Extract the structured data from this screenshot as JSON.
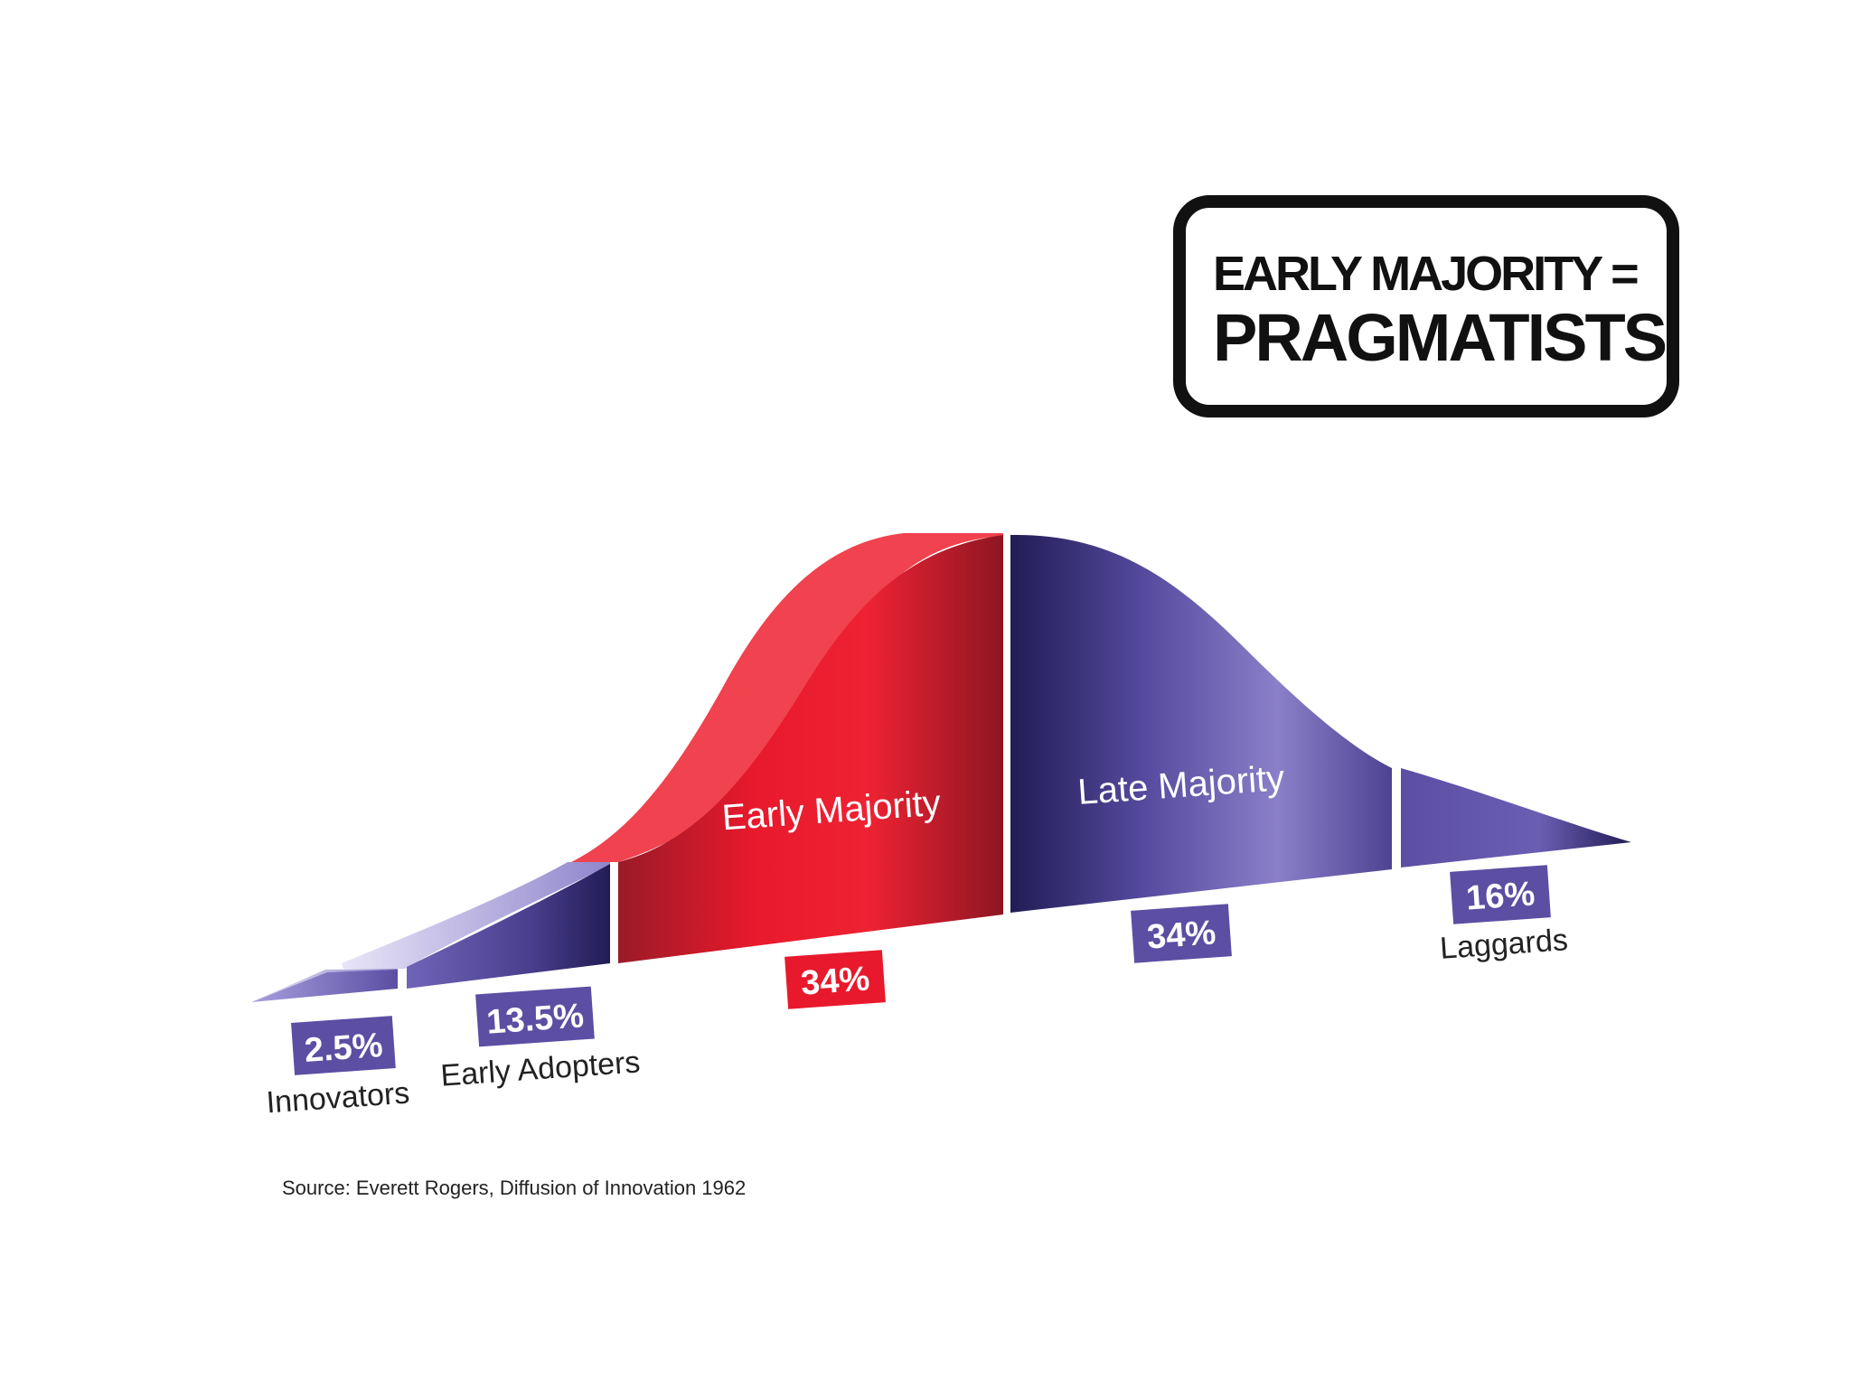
{
  "callout": {
    "line1": "EARLY MAJORITY =",
    "line2": "PRAGMATISTS"
  },
  "source": "Source: Everett Rogers, Diffusion of Innovation 1962",
  "colors": {
    "red": "#e8192c",
    "red_dark": "#8e1622",
    "purple": "#5b4ea3",
    "purple_dark": "#221c55",
    "purple_light": "#8a7fc8",
    "badge_purple": "#5b4ea3",
    "badge_red": "#e8192c"
  },
  "chart_data": {
    "type": "area",
    "title": "",
    "xlabel": "",
    "ylabel": "",
    "categories": [
      "Innovators",
      "Early Adopters",
      "Early Majority",
      "Late Majority",
      "Laggards"
    ],
    "values": [
      2.5,
      13.5,
      34,
      34,
      16
    ],
    "value_labels": [
      "2.5%",
      "13.5%",
      "34%",
      "34%",
      "16%"
    ],
    "segment_labels_inside": [
      "",
      "",
      "Early Majority",
      "Late Majority",
      ""
    ],
    "segment_labels_below": [
      "Innovators",
      "Early Adopters",
      "",
      "",
      "Laggards"
    ],
    "highlight": "Early Majority",
    "grid": false,
    "legend": "none"
  }
}
